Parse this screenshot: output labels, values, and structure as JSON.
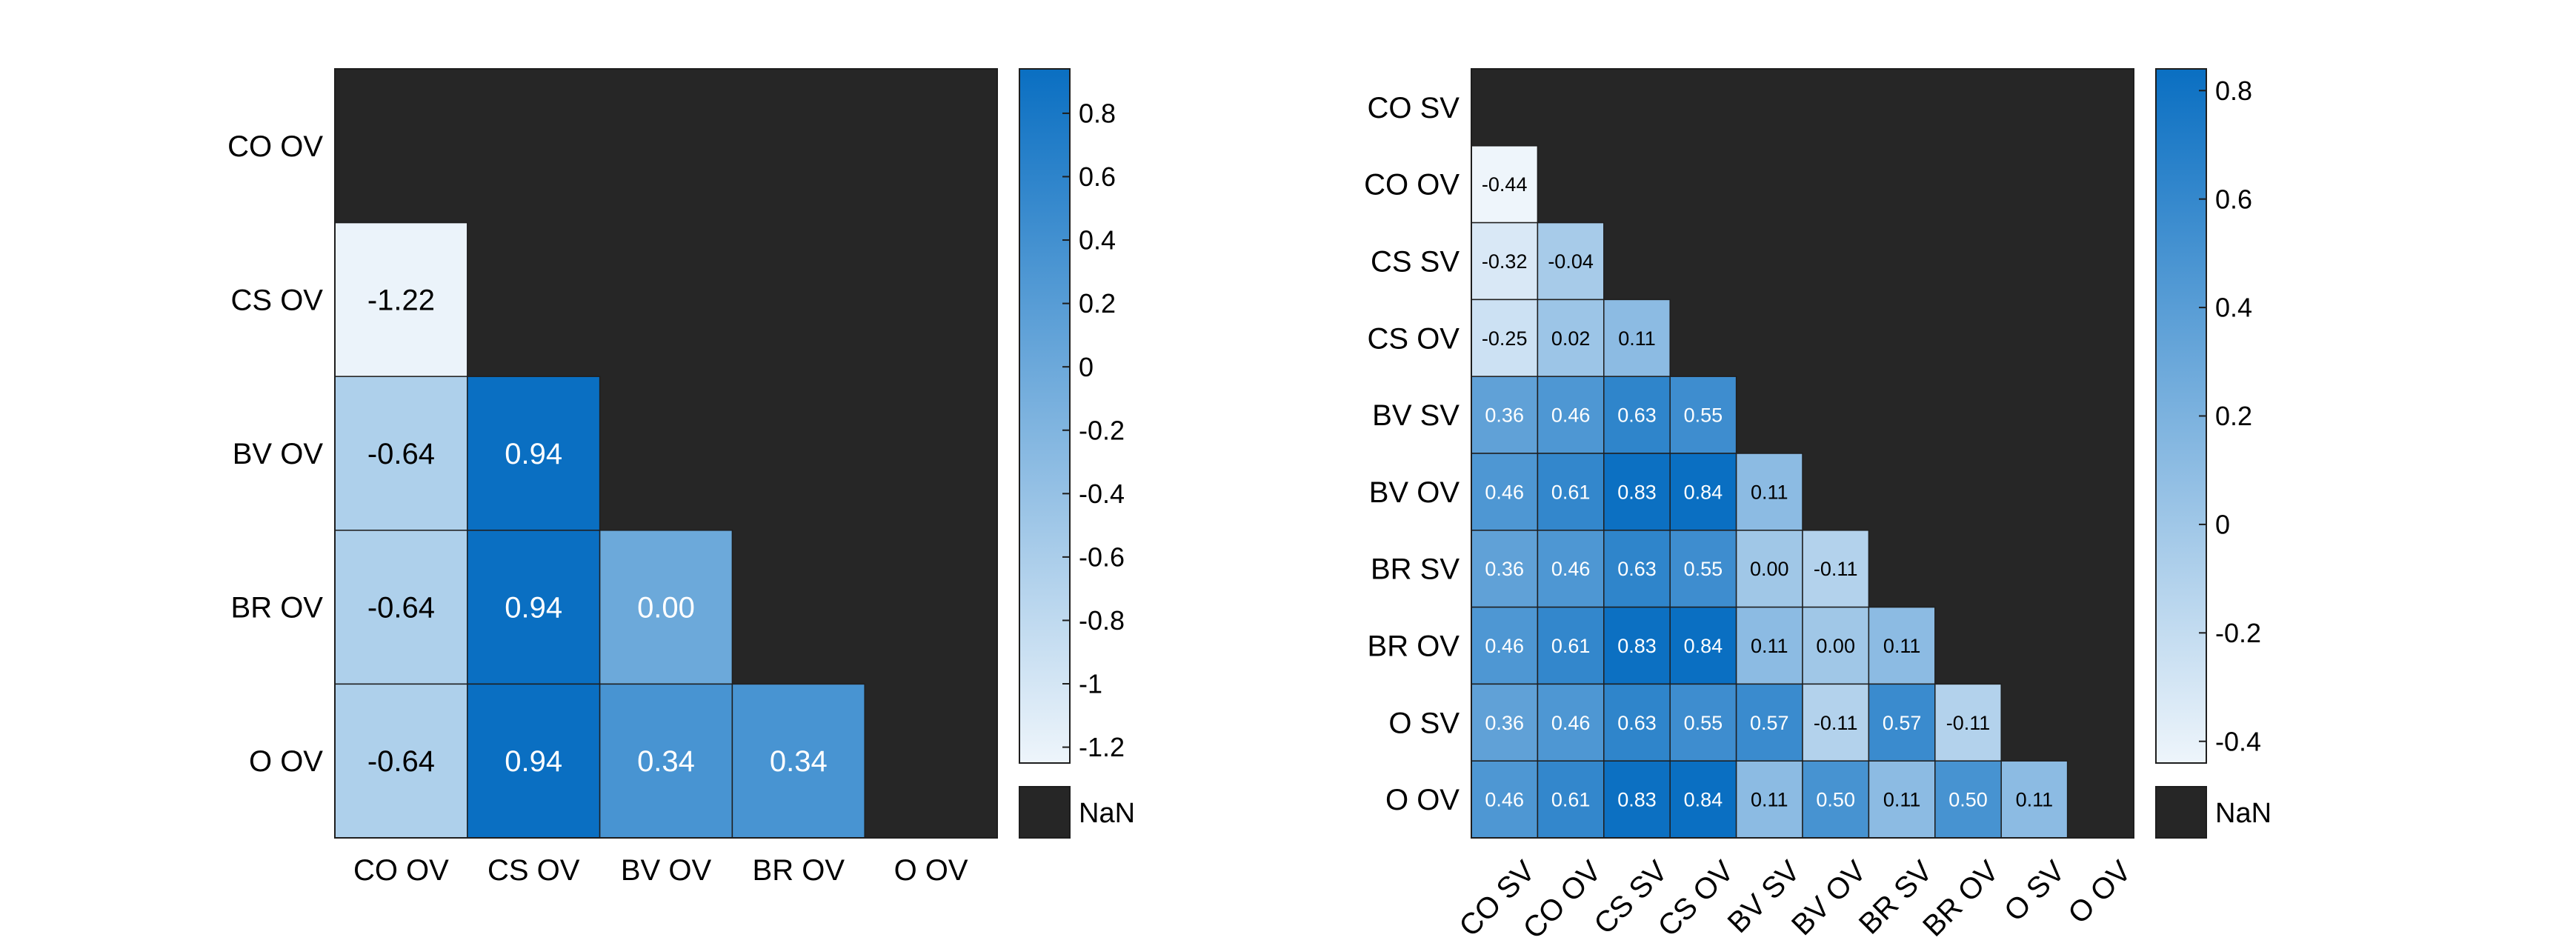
{
  "colors": {
    "nan": "#262626",
    "low": "#eef5fb",
    "high": "#0a6fc2",
    "grid": "#1e1e1e",
    "text_dark": "#000000",
    "text_light": "#ffffff"
  },
  "nan_label": "NaN",
  "chart_data": [
    {
      "type": "heatmap",
      "title": "",
      "xlabel": "",
      "ylabel": "",
      "x_labels": [
        "CO OV",
        "CS OV",
        "BV OV",
        "BR OV",
        "O OV"
      ],
      "y_labels": [
        "CO OV",
        "CS OV",
        "BV OV",
        "BR OV",
        "O OV"
      ],
      "values": [
        [
          null,
          null,
          null,
          null,
          null
        ],
        [
          -1.22,
          null,
          null,
          null,
          null
        ],
        [
          -0.64,
          0.94,
          null,
          null,
          null
        ],
        [
          -0.64,
          0.94,
          0.0,
          null,
          null
        ],
        [
          -0.64,
          0.94,
          0.34,
          0.34,
          null
        ]
      ],
      "value_labels": [
        [
          null,
          null,
          null,
          null,
          null
        ],
        [
          "-1.22",
          null,
          null,
          null,
          null
        ],
        [
          "-0.64",
          "0.94",
          null,
          null,
          null
        ],
        [
          "-0.64",
          "0.94",
          "0.00",
          null,
          null
        ],
        [
          "-0.64",
          "0.94",
          "0.34",
          "0.34",
          null
        ]
      ],
      "colorbar": {
        "range": [
          -1.25,
          0.94
        ],
        "ticks": [
          0.8,
          0.6,
          0.4,
          0.2,
          0,
          -0.2,
          -0.4,
          -0.6,
          -0.8,
          -1,
          -1.2
        ],
        "tick_labels": [
          "0.8",
          "0.6",
          "0.4",
          "0.2",
          "0",
          "-0.2",
          "-0.4",
          "-0.6",
          "-0.8",
          "-1",
          "-1.2"
        ]
      },
      "legend": "right"
    },
    {
      "type": "heatmap",
      "title": "",
      "xlabel": "",
      "ylabel": "",
      "x_labels": [
        "CO SV",
        "CO OV",
        "CS SV",
        "CS OV",
        "BV SV",
        "BV OV",
        "BR SV",
        "BR OV",
        "O SV",
        "O OV"
      ],
      "y_labels": [
        "CO SV",
        "CO OV",
        "CS SV",
        "CS OV",
        "BV SV",
        "BV OV",
        "BR SV",
        "BR OV",
        "O SV",
        "O OV"
      ],
      "values": [
        [
          null,
          null,
          null,
          null,
          null,
          null,
          null,
          null,
          null,
          null
        ],
        [
          -0.44,
          null,
          null,
          null,
          null,
          null,
          null,
          null,
          null,
          null
        ],
        [
          -0.32,
          -0.04,
          null,
          null,
          null,
          null,
          null,
          null,
          null,
          null
        ],
        [
          -0.25,
          0.02,
          0.11,
          null,
          null,
          null,
          null,
          null,
          null,
          null
        ],
        [
          0.36,
          0.46,
          0.63,
          0.55,
          null,
          null,
          null,
          null,
          null,
          null
        ],
        [
          0.46,
          0.61,
          0.83,
          0.84,
          0.11,
          null,
          null,
          null,
          null,
          null
        ],
        [
          0.36,
          0.46,
          0.63,
          0.55,
          0.0,
          -0.11,
          null,
          null,
          null,
          null
        ],
        [
          0.46,
          0.61,
          0.83,
          0.84,
          0.11,
          0.0,
          0.11,
          null,
          null,
          null
        ],
        [
          0.36,
          0.46,
          0.63,
          0.55,
          0.57,
          -0.11,
          0.57,
          -0.11,
          null,
          null
        ],
        [
          0.46,
          0.61,
          0.83,
          0.84,
          0.11,
          0.5,
          0.11,
          0.5,
          0.11,
          null
        ]
      ],
      "value_labels": [
        [
          null,
          null,
          null,
          null,
          null,
          null,
          null,
          null,
          null,
          null
        ],
        [
          "-0.44",
          null,
          null,
          null,
          null,
          null,
          null,
          null,
          null,
          null
        ],
        [
          "-0.32",
          "-0.04",
          null,
          null,
          null,
          null,
          null,
          null,
          null,
          null
        ],
        [
          "-0.25",
          "0.02",
          "0.11",
          null,
          null,
          null,
          null,
          null,
          null,
          null
        ],
        [
          "0.36",
          "0.46",
          "0.63",
          "0.55",
          null,
          null,
          null,
          null,
          null,
          null
        ],
        [
          "0.46",
          "0.61",
          "0.83",
          "0.84",
          "0.11",
          null,
          null,
          null,
          null,
          null
        ],
        [
          "0.36",
          "0.46",
          "0.63",
          "0.55",
          "0.00",
          "-0.11",
          null,
          null,
          null,
          null
        ],
        [
          "0.46",
          "0.61",
          "0.83",
          "0.84",
          "0.11",
          "0.00",
          "0.11",
          null,
          null,
          null
        ],
        [
          "0.36",
          "0.46",
          "0.63",
          "0.55",
          "0.57",
          "-0.11",
          "0.57",
          "-0.11",
          null,
          null
        ],
        [
          "0.46",
          "0.61",
          "0.83",
          "0.84",
          "0.11",
          "0.50",
          "0.11",
          "0.50",
          "0.11",
          null
        ]
      ],
      "colorbar": {
        "range": [
          -0.44,
          0.84
        ],
        "ticks": [
          0.8,
          0.6,
          0.4,
          0.2,
          0,
          -0.2,
          -0.4
        ],
        "tick_labels": [
          "0.8",
          "0.6",
          "0.4",
          "0.2",
          "0",
          "-0.2",
          "-0.4"
        ]
      },
      "legend": "right"
    }
  ]
}
